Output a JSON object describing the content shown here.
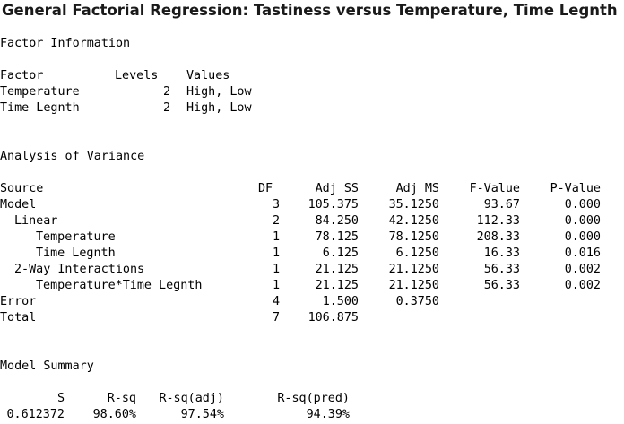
{
  "title": "General Factorial Regression: Tastiness versus Temperature, Time Legnth",
  "factor_info": {
    "heading": "Factor Information",
    "columns": [
      "Factor",
      "Levels",
      "Values"
    ],
    "rows": [
      {
        "factor": "Temperature",
        "levels": "2",
        "values": "High, Low"
      },
      {
        "factor": "Time Legnth",
        "levels": "2",
        "values": "High, Low"
      }
    ]
  },
  "anova": {
    "heading": "Analysis of Variance",
    "columns": [
      "Source",
      "DF",
      "Adj SS",
      "Adj MS",
      "F-Value",
      "P-Value"
    ],
    "rows": [
      {
        "source": "Model",
        "df": "3",
        "adj_ss": "105.375",
        "adj_ms": "35.1250",
        "f": "93.67",
        "p": "0.000"
      },
      {
        "source": "Linear",
        "df": "2",
        "adj_ss": "84.250",
        "adj_ms": "42.1250",
        "f": "112.33",
        "p": "0.000"
      },
      {
        "source": "Temperature",
        "df": "1",
        "adj_ss": "78.125",
        "adj_ms": "78.1250",
        "f": "208.33",
        "p": "0.000"
      },
      {
        "source": "Time Legnth",
        "df": "1",
        "adj_ss": "6.125",
        "adj_ms": "6.1250",
        "f": "16.33",
        "p": "0.016"
      },
      {
        "source": "2-Way Interactions",
        "df": "1",
        "adj_ss": "21.125",
        "adj_ms": "21.1250",
        "f": "56.33",
        "p": "0.002"
      },
      {
        "source": "Temperature*Time Legnth",
        "df": "1",
        "adj_ss": "21.125",
        "adj_ms": "21.1250",
        "f": "56.33",
        "p": "0.002"
      },
      {
        "source": "Error",
        "df": "4",
        "adj_ss": "1.500",
        "adj_ms": "0.3750",
        "f": "",
        "p": ""
      },
      {
        "source": "Total",
        "df": "7",
        "adj_ss": "106.875",
        "adj_ms": "",
        "f": "",
        "p": ""
      }
    ]
  },
  "model_summary": {
    "heading": "Model Summary",
    "columns": [
      "S",
      "R-sq",
      "R-sq(adj)",
      "R-sq(pred)"
    ],
    "values": [
      "0.612372",
      "98.60%",
      "97.54%",
      "94.39%"
    ]
  }
}
